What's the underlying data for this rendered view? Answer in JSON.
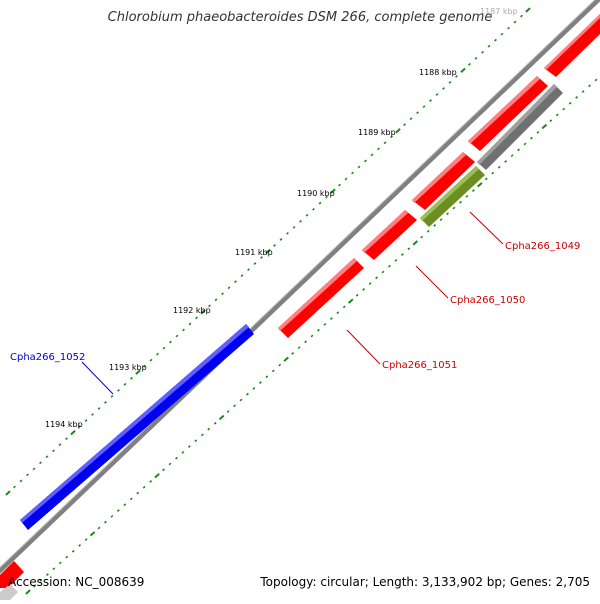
{
  "title": "Chlorobium phaeobacteroides DSM 266, complete genome",
  "accession": "Accession: NC_008639",
  "topology": "Topology: circular; Length: 3,133,902 bp; Genes: 2,705",
  "colors": {
    "backbone": "#808080",
    "ticks": "#1a8a1a",
    "gene_red": "#ff0000",
    "gene_blue": "#0000ee",
    "gene_gray": "#707070",
    "gene_olive": "#6b8e23",
    "label_red": "#cc0000",
    "label_blue": "#0000cc"
  },
  "scale_labels": [
    "1187 kbp",
    "1188 kbp",
    "1189 kbp",
    "1190 kbp",
    "1191 kbp",
    "1192 kbp",
    "1193 kbp",
    "1194 kbp"
  ],
  "gene_labels": {
    "g1049": "Cpha266_1049",
    "g1050": "Cpha266_1050",
    "g1051": "Cpha266_1051",
    "g1052": "Cpha266_1052"
  }
}
